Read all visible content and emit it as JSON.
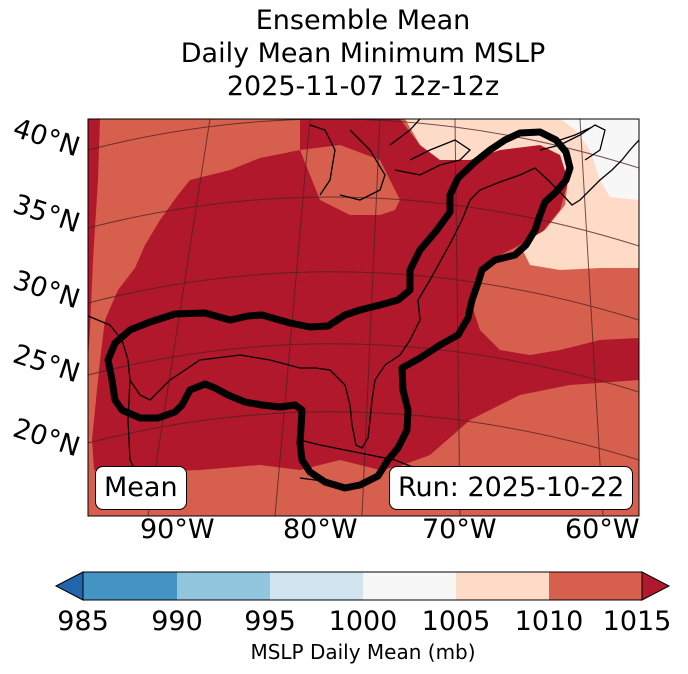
{
  "title": {
    "line1": "Ensemble Mean",
    "line2": "Daily Mean Minimum MSLP",
    "line3": "2025-11-07 12z-12z"
  },
  "map": {
    "lat_labels": [
      "40°N",
      "35°N",
      "30°N",
      "25°N",
      "20°N"
    ],
    "lon_labels": [
      "90°W",
      "80°W",
      "70°W",
      "60°W"
    ],
    "mean_label": "Mean",
    "run_label": "Run: 2025-10-22",
    "fill_colors": {
      "1010_1015": "#b2182b",
      "1005_1010": "#d6604d",
      "1000_1005": "#fddbc7",
      "995_1000": "#f7f7f7"
    }
  },
  "colorbar": {
    "ticks": [
      "985",
      "990",
      "995",
      "1000",
      "1005",
      "1010",
      "1015"
    ],
    "colors": [
      "#2166ac",
      "#4393c3",
      "#92c5de",
      "#d1e5f0",
      "#f7f7f7",
      "#fddbc7",
      "#d6604d",
      "#b2182b"
    ],
    "label": "MSLP Daily Mean (mb)"
  }
}
